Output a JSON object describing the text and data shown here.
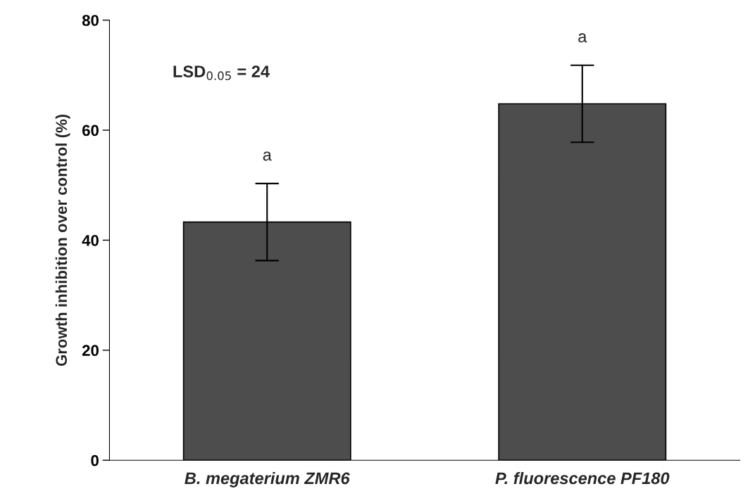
{
  "chart_data": {
    "type": "bar",
    "ylabel": "Growth inhibition over control (%)",
    "categories": [
      "B. megaterium ZMR6",
      "P. fluorescence PF180"
    ],
    "series": [
      {
        "color": "#4d4d4d",
        "values": [
          43.3,
          64.8
        ],
        "errors": [
          7,
          7
        ]
      }
    ],
    "ylim": [
      0,
      80
    ],
    "yticks": [
      0,
      20,
      40,
      60,
      80
    ],
    "grid": false,
    "legend": false,
    "annotations": [
      "LSD$_{0.05}$ = 24",
      "a",
      "a"
    ]
  }
}
